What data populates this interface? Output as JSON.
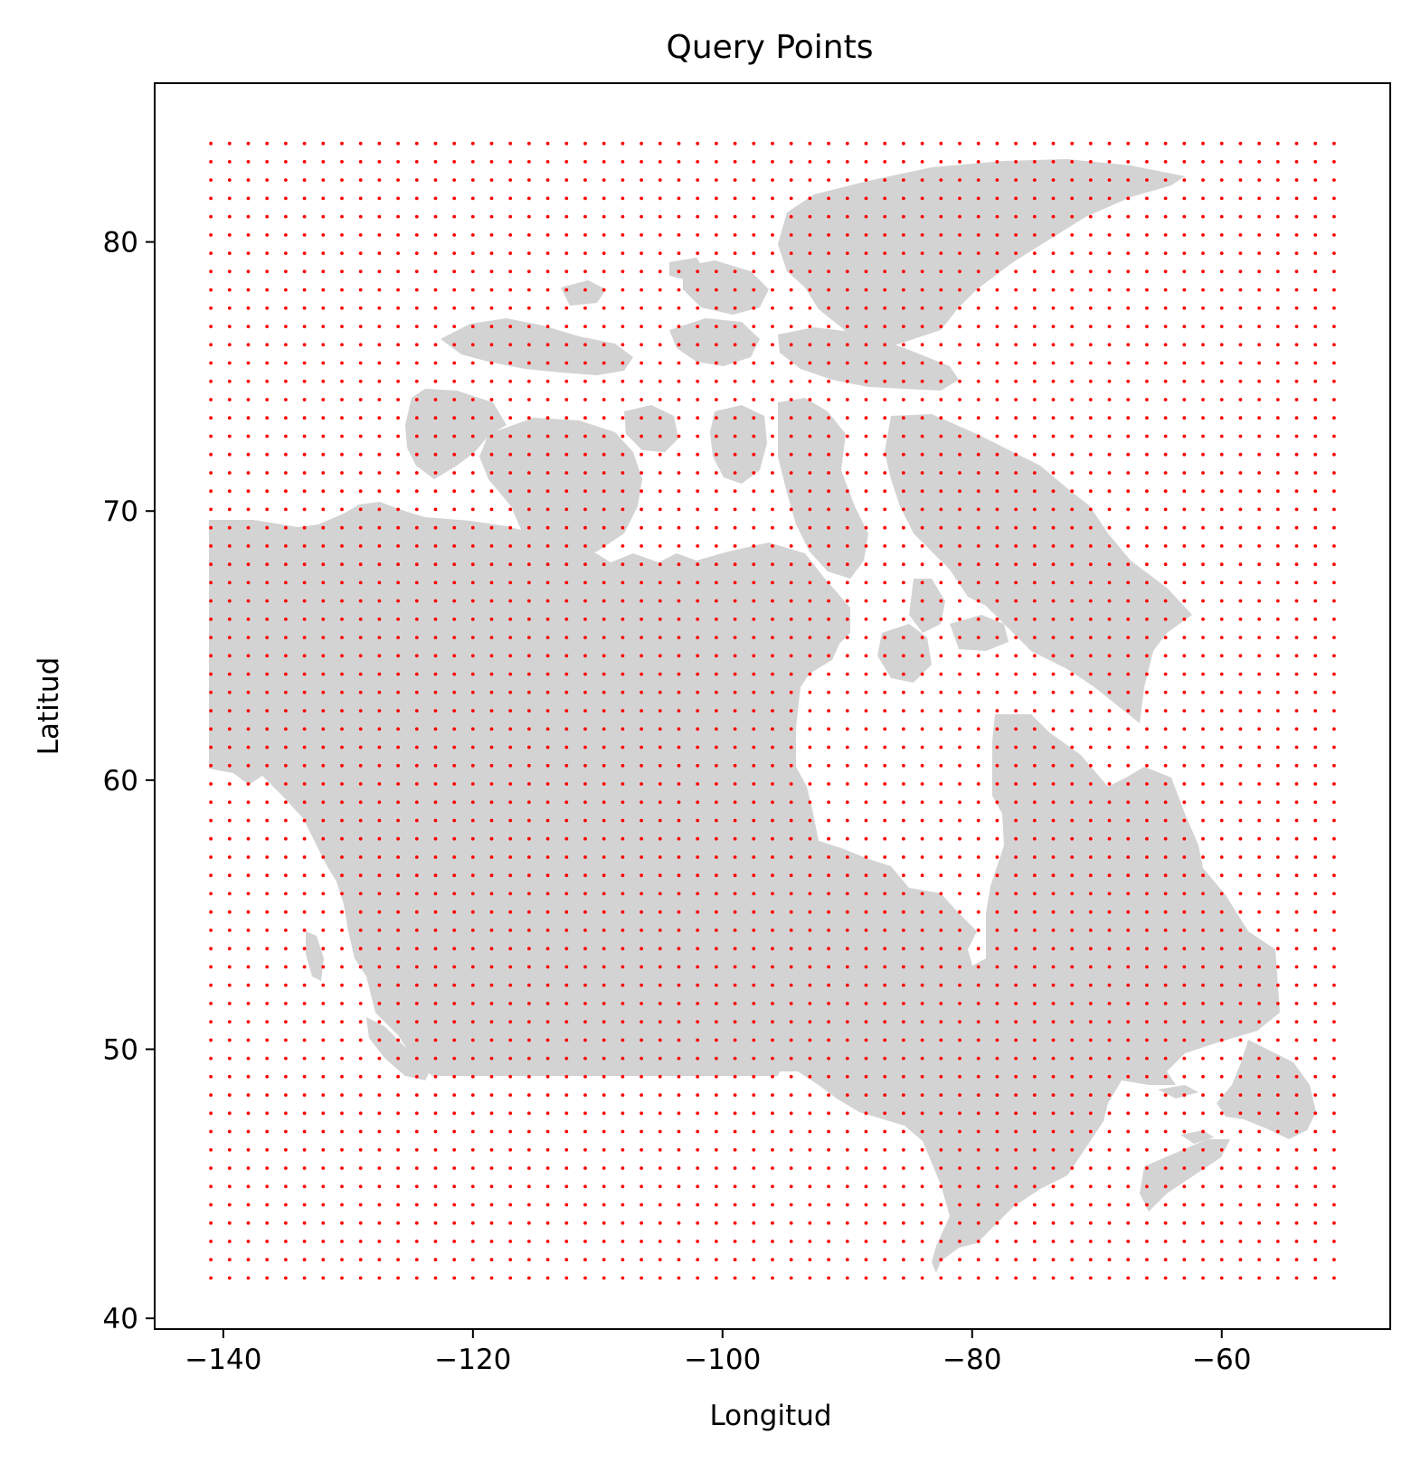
{
  "chart_data": {
    "type": "scatter",
    "title": "Query Points",
    "xlabel": "Longitud",
    "ylabel": "Latitud",
    "xlim": [
      -145.5,
      -46.5
    ],
    "ylim": [
      39.6,
      85.9
    ],
    "xticks": [
      -140,
      -120,
      -100,
      -80,
      -60
    ],
    "xtick_labels": [
      "−140",
      "−120",
      "−100",
      "−80",
      "−60"
    ],
    "yticks": [
      40,
      50,
      60,
      70,
      80
    ],
    "ytick_labels": [
      "40",
      "50",
      "60",
      "70",
      "80"
    ],
    "grid": false,
    "series": [
      {
        "grid_points": {
          "x_start": -141.0,
          "x_end": -51.0,
          "x_step": 1.5,
          "y_start": 41.5,
          "y_end": 84.0,
          "y_step": 0.68
        },
        "color": "#ff0000"
      }
    ],
    "background_shape": "Canada landmass",
    "background_color": "#d3d3d3"
  }
}
